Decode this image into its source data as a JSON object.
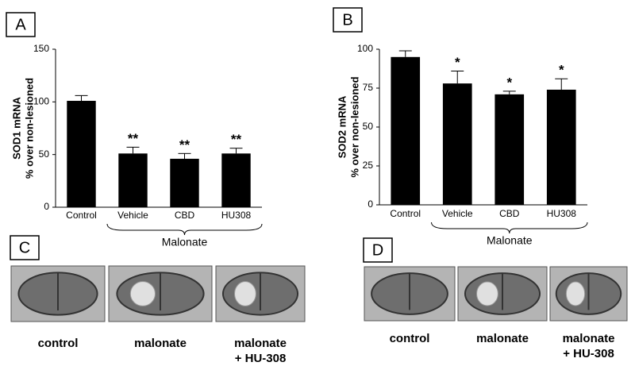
{
  "chart_data": [
    {
      "type": "bar",
      "panel": "A",
      "ylabel": [
        "SOD1 mRNA",
        "% over non-lesioned"
      ],
      "categories": [
        "Control",
        "Vehicle",
        "CBD",
        "HU308"
      ],
      "values": [
        101,
        51,
        46,
        51
      ],
      "errors": [
        5,
        6,
        5,
        5
      ],
      "color": "#000000",
      "ylim": [
        0,
        150
      ],
      "yticks": [
        0,
        50,
        100,
        150
      ],
      "annotations": [
        {
          "x": "Vehicle",
          "text": "**"
        },
        {
          "x": "CBD",
          "text": "**"
        },
        {
          "x": "HU308",
          "text": "**"
        }
      ],
      "group_label": "Malonate"
    },
    {
      "type": "bar",
      "panel": "B",
      "ylabel": [
        "SOD2 mRNA",
        "% over non-lesioned"
      ],
      "categories": [
        "Control",
        "Vehicle",
        "CBD",
        "HU308"
      ],
      "values": [
        95,
        78,
        71,
        74
      ],
      "errors": [
        4,
        8,
        2,
        7
      ],
      "color": "#000000",
      "ylim": [
        0,
        100
      ],
      "yticks": [
        0,
        25,
        50,
        75,
        100
      ],
      "annotations": [
        {
          "x": "Vehicle",
          "text": "*"
        },
        {
          "x": "CBD",
          "text": "*"
        },
        {
          "x": "HU308",
          "text": "*"
        }
      ],
      "group_label": "Malonate"
    }
  ],
  "image_panels": [
    {
      "panel": "C",
      "captions": [
        [
          "control"
        ],
        [
          "malonate"
        ],
        [
          "malonate",
          "+ HU-308"
        ]
      ]
    },
    {
      "panel": "D",
      "captions": [
        [
          "control"
        ],
        [
          "malonate"
        ],
        [
          "malonate",
          "+ HU-308"
        ]
      ]
    }
  ]
}
